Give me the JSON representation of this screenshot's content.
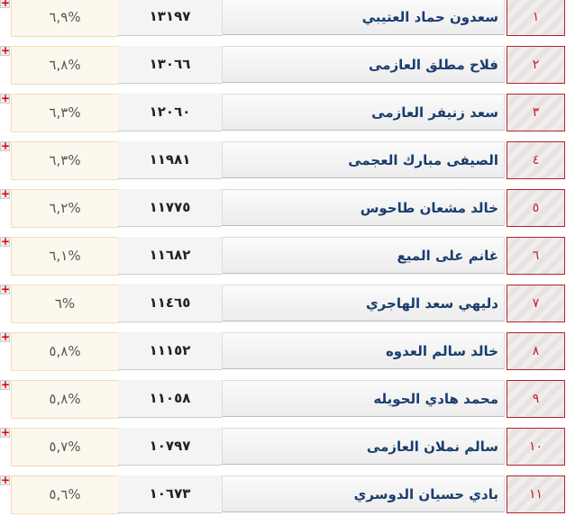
{
  "rows": [
    {
      "rank": "١",
      "name": "سعدون حماد العتيبي",
      "votes": "١٣١٩٧",
      "percent": "%٦,٩"
    },
    {
      "rank": "٢",
      "name": "فلاح مطلق العازمى",
      "votes": "١٣٠٦٦",
      "percent": "%٦,٨"
    },
    {
      "rank": "٣",
      "name": "سعد زنيفر العازمى",
      "votes": "١٢٠٦٠",
      "percent": "%٦,٣"
    },
    {
      "rank": "٤",
      "name": "الصيفى مبارك العجمى",
      "votes": "١١٩٨١",
      "percent": "%٦,٣"
    },
    {
      "rank": "٥",
      "name": "خالد مشعان طاحوس",
      "votes": "١١٧٧٥",
      "percent": "%٦,٢"
    },
    {
      "rank": "٦",
      "name": "غانم على الميع",
      "votes": "١١٦٨٢",
      "percent": "%٦,١"
    },
    {
      "rank": "٧",
      "name": "دليهي سعد الهاجري",
      "votes": "١١٤٦٥",
      "percent": "%٦"
    },
    {
      "rank": "٨",
      "name": "خالد سالم العدوه",
      "votes": "١١١٥٢",
      "percent": "%٥,٨"
    },
    {
      "rank": "٩",
      "name": "محمد هادي الحويله",
      "votes": "١١٠٥٨",
      "percent": "%٥,٨"
    },
    {
      "rank": "١٠",
      "name": "سالم نملان العازمى",
      "votes": "١٠٧٩٧",
      "percent": "%٥,٧"
    },
    {
      "rank": "١١",
      "name": "بادي حسيان الدوسري",
      "votes": "١٠٦٧٣",
      "percent": "%٥,٦"
    }
  ],
  "expand_icon": "plus-icon",
  "accent": "#b3202a",
  "name_color": "#1a3d6e"
}
